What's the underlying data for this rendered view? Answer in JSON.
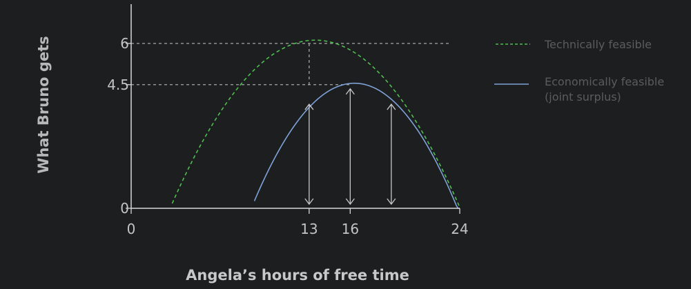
{
  "chart_data": {
    "type": "line",
    "xlabel": "Angela’s hours of free time",
    "ylabel": "What Bruno gets",
    "xlim": [
      0,
      24
    ],
    "ylim": [
      0,
      6
    ],
    "x_ticks": [
      "0",
      "13",
      "16",
      "24"
    ],
    "y_ticks": [
      "0",
      "4.5",
      "6"
    ],
    "grid": false,
    "legend_position": "right",
    "series": [
      {
        "name": "Technically feasible",
        "style": "dashed",
        "color": "#4fbf4f",
        "x": [
          3,
          6,
          9,
          11,
          13,
          15,
          18,
          21,
          24
        ],
        "y": [
          0,
          3.38,
          5.12,
          5.75,
          6,
          5.87,
          5,
          3.12,
          0
        ]
      },
      {
        "name": "Economically feasible\n(joint surplus)",
        "style": "solid",
        "color": "#7fa3d8",
        "x": [
          9,
          11,
          13,
          15,
          16,
          17,
          19,
          21,
          24
        ],
        "y": [
          0,
          2.5,
          3.94,
          4.44,
          4.5,
          4.44,
          3.94,
          2.5,
          0
        ]
      }
    ],
    "reference_lines": [
      {
        "from_x": 0,
        "to_x": 13,
        "y": 6,
        "extends_right": true
      },
      {
        "from_x": 0,
        "to_x": 16,
        "y": 4.5
      },
      {
        "x": 13,
        "from_y": 6,
        "to_y": 4.5
      }
    ],
    "double_arrows": [
      {
        "x": 13,
        "y_from": 0,
        "y_to": 3.94
      },
      {
        "x": 16,
        "y_from": 0,
        "y_to": 4.5
      },
      {
        "x": 19,
        "y_from": 0,
        "y_to": 3.94
      }
    ],
    "legend": {
      "technical_label": "Technically feasible",
      "economic_label_line1": "Economically feasible",
      "economic_label_line2": "(joint surplus)"
    }
  },
  "colors": {
    "axis": "#d8d8d8",
    "tick_text": "#c4c4c4",
    "reference_line": "#a8a8a8",
    "arrow": "#c8c8c8",
    "legend_text": "#5c5c5c"
  }
}
